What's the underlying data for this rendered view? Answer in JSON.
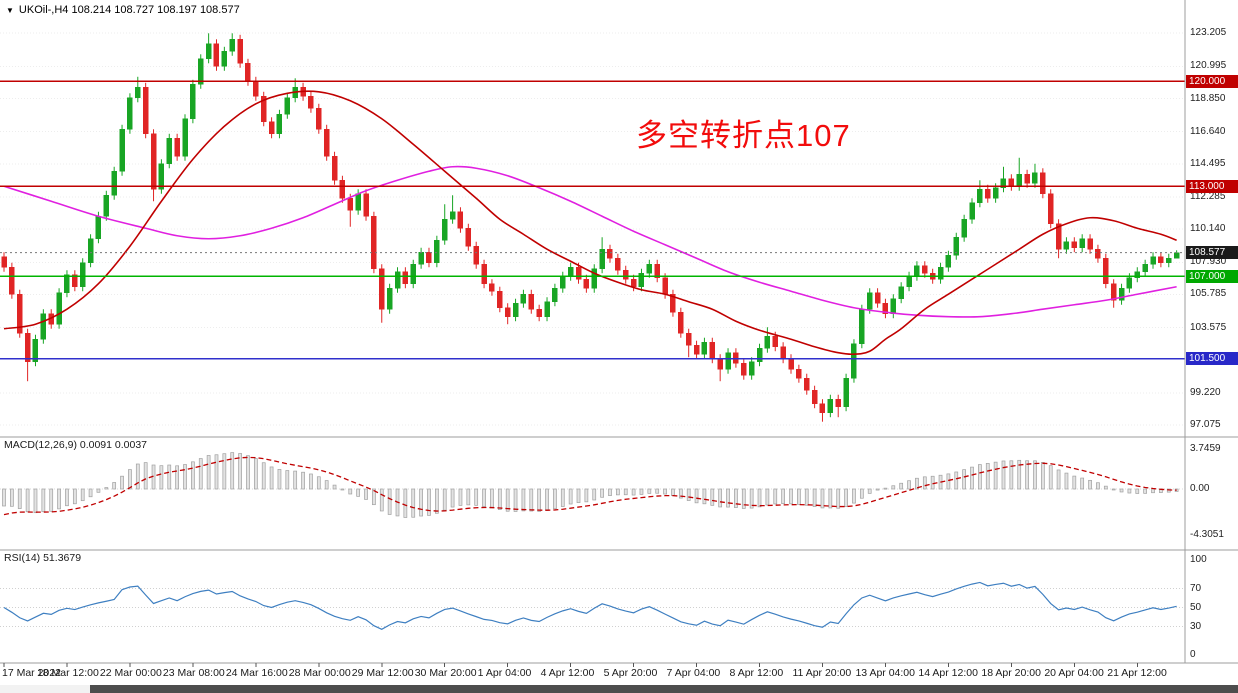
{
  "header": {
    "marker": "▼",
    "text": "UKOil-,H4  108.214 108.727 108.197 108.577"
  },
  "annotation": {
    "text": "多空转折点107",
    "color": "#f20c0c"
  },
  "indicators": {
    "macd": {
      "label": "MACD(12,26,9) 0.0091 0.0037",
      "axis_labels": [
        {
          "text": "3.7459",
          "value": 3.7459
        },
        {
          "text": "0.00",
          "value": 0
        },
        {
          "text": "-4.3051",
          "value": -4.3051
        }
      ]
    },
    "rsi": {
      "label": "RSI(14) 51.3679",
      "axis_labels": [
        {
          "text": "100",
          "value": 100
        },
        {
          "text": "70",
          "value": 70
        },
        {
          "text": "50",
          "value": 50
        },
        {
          "text": "30",
          "value": 30
        },
        {
          "text": "0",
          "value": 0
        }
      ],
      "levels": [
        70,
        50,
        30
      ]
    }
  },
  "price_axis": {
    "labels": [
      {
        "text": "123.205",
        "price": 123.205
      },
      {
        "text": "120.995",
        "price": 120.995
      },
      {
        "text": "118.850",
        "price": 118.85
      },
      {
        "text": "116.640",
        "price": 116.64
      },
      {
        "text": "114.495",
        "price": 114.495
      },
      {
        "text": "112.285",
        "price": 112.285
      },
      {
        "text": "110.140",
        "price": 110.14
      },
      {
        "text": "107.930",
        "price": 107.93
      },
      {
        "text": "105.785",
        "price": 105.785
      },
      {
        "text": "103.575",
        "price": 103.575
      },
      {
        "text": "99.220",
        "price": 99.22
      },
      {
        "text": "97.075",
        "price": 97.075
      }
    ],
    "tags": [
      {
        "text": "120.000",
        "price": 120.0,
        "bg": "#c00000"
      },
      {
        "text": "113.000",
        "price": 113.0,
        "bg": "#c00000"
      },
      {
        "text": "108.577",
        "price": 108.577,
        "bg": "#1a1a1a"
      },
      {
        "text": "107.000",
        "price": 107.0,
        "bg": "#00a800"
      },
      {
        "text": "101.500",
        "price": 101.5,
        "bg": "#2828c8"
      }
    ]
  },
  "time_axis": {
    "labels": [
      {
        "bar": 0,
        "text": "17 Mar 2022"
      },
      {
        "bar": 8,
        "text": "18 Mar 12:00"
      },
      {
        "bar": 16,
        "text": "22 Mar 00:00"
      },
      {
        "bar": 24,
        "text": "23 Mar 08:00"
      },
      {
        "bar": 32,
        "text": "24 Mar 16:00"
      },
      {
        "bar": 40,
        "text": "28 Mar 00:00"
      },
      {
        "bar": 48,
        "text": "29 Mar 12:00"
      },
      {
        "bar": 56,
        "text": "30 Mar 20:00"
      },
      {
        "bar": 64,
        "text": "1 Apr 04:00"
      },
      {
        "bar": 72,
        "text": "4 Apr 12:00"
      },
      {
        "bar": 80,
        "text": "5 Apr 20:00"
      },
      {
        "bar": 88,
        "text": "7 Apr 04:00"
      },
      {
        "bar": 96,
        "text": "8 Apr 12:00"
      },
      {
        "bar": 104,
        "text": "11 Apr 20:00"
      },
      {
        "bar": 112,
        "text": "13 Apr 04:00"
      },
      {
        "bar": 120,
        "text": "14 Apr 12:00"
      },
      {
        "bar": 128,
        "text": "18 Apr 20:00"
      },
      {
        "bar": 136,
        "text": "20 Apr 04:00"
      },
      {
        "bar": 144,
        "text": "21 Apr 12:00"
      }
    ]
  },
  "colors": {
    "up": "#18a524",
    "down": "#e02525",
    "ma_fast": "#c00000",
    "ma_slow": "#e020e0",
    "macd_hist_fill": "#e2e2e2",
    "macd_hist_stroke": "#a0a0a0",
    "macd_signal": "#c00000",
    "rsi_line": "#3e7fc1",
    "grid": "#ededed",
    "separator": "#9c9c9c",
    "current_price_line": "#777777"
  },
  "chart_data": {
    "type": "candlestick",
    "symbol": "UKOil-",
    "timeframe": "H4",
    "ohlc_current": {
      "open": 108.214,
      "high": 108.727,
      "low": 108.197,
      "close": 108.577
    },
    "y_range_main": [
      96.28,
      125.42
    ],
    "current_price_line": 108.577,
    "hlines": [
      {
        "price": 120.0,
        "color": "#c00000"
      },
      {
        "price": 113.0,
        "color": "#c00000"
      },
      {
        "price": 107.0,
        "color": "#00b400"
      },
      {
        "price": 101.5,
        "color": "#3030cc"
      }
    ],
    "candles": [
      [
        108.3,
        108.6,
        107.3,
        107.6
      ],
      [
        107.6,
        107.9,
        105.5,
        105.8
      ],
      [
        105.8,
        106.1,
        102.9,
        103.2
      ],
      [
        103.2,
        103.5,
        100.0,
        101.3
      ],
      [
        101.3,
        103.1,
        101.0,
        102.8
      ],
      [
        102.8,
        104.8,
        102.5,
        104.5
      ],
      [
        104.5,
        104.8,
        103.5,
        103.8
      ],
      [
        103.8,
        106.2,
        103.5,
        105.9
      ],
      [
        105.9,
        107.4,
        105.6,
        107.1
      ],
      [
        107.1,
        107.4,
        106.0,
        106.3
      ],
      [
        106.3,
        108.2,
        106.0,
        107.9
      ],
      [
        107.9,
        109.8,
        107.6,
        109.5
      ],
      [
        109.5,
        111.3,
        109.2,
        111.0
      ],
      [
        111.0,
        112.7,
        110.7,
        112.4
      ],
      [
        112.4,
        114.3,
        112.1,
        114.0
      ],
      [
        114.0,
        117.1,
        113.7,
        116.8
      ],
      [
        116.8,
        119.2,
        116.5,
        118.9
      ],
      [
        118.9,
        120.3,
        118.6,
        119.6
      ],
      [
        119.6,
        119.9,
        116.2,
        116.5
      ],
      [
        116.5,
        116.8,
        112.0,
        112.8
      ],
      [
        112.8,
        114.8,
        112.5,
        114.5
      ],
      [
        114.5,
        116.5,
        114.2,
        116.2
      ],
      [
        116.2,
        116.5,
        114.7,
        115.0
      ],
      [
        115.0,
        117.8,
        114.7,
        117.5
      ],
      [
        117.5,
        120.1,
        117.2,
        119.8
      ],
      [
        119.8,
        121.8,
        119.5,
        121.5
      ],
      [
        121.5,
        123.2,
        121.2,
        122.5
      ],
      [
        122.5,
        122.8,
        120.7,
        121.0
      ],
      [
        121.0,
        122.3,
        120.7,
        122.0
      ],
      [
        122.0,
        123.2,
        121.7,
        122.8
      ],
      [
        122.8,
        123.1,
        120.9,
        121.2
      ],
      [
        121.2,
        121.5,
        119.7,
        120.0
      ],
      [
        120.0,
        120.3,
        118.7,
        119.0
      ],
      [
        119.0,
        119.3,
        117.0,
        117.3
      ],
      [
        117.3,
        117.6,
        116.2,
        116.5
      ],
      [
        116.5,
        118.1,
        116.2,
        117.8
      ],
      [
        117.8,
        119.2,
        117.5,
        118.9
      ],
      [
        118.9,
        120.2,
        118.6,
        119.6
      ],
      [
        119.6,
        119.9,
        118.7,
        119.0
      ],
      [
        119.0,
        119.3,
        117.9,
        118.2
      ],
      [
        118.2,
        118.5,
        116.5,
        116.8
      ],
      [
        116.8,
        117.1,
        114.7,
        115.0
      ],
      [
        115.0,
        115.3,
        113.1,
        113.4
      ],
      [
        113.4,
        113.7,
        111.9,
        112.2
      ],
      [
        112.2,
        112.5,
        110.3,
        111.4
      ],
      [
        111.4,
        112.8,
        111.1,
        112.5
      ],
      [
        112.5,
        112.8,
        110.7,
        111.0
      ],
      [
        111.0,
        111.3,
        107.2,
        107.5
      ],
      [
        107.5,
        107.8,
        103.9,
        104.8
      ],
      [
        104.8,
        106.5,
        104.5,
        106.2
      ],
      [
        106.2,
        107.6,
        105.9,
        107.3
      ],
      [
        107.3,
        107.6,
        106.2,
        106.5
      ],
      [
        106.5,
        108.1,
        106.2,
        107.8
      ],
      [
        107.8,
        108.9,
        107.5,
        108.6
      ],
      [
        108.6,
        108.9,
        107.6,
        107.9
      ],
      [
        107.9,
        109.7,
        107.6,
        109.4
      ],
      [
        109.4,
        111.8,
        109.1,
        110.8
      ],
      [
        110.8,
        112.4,
        110.5,
        111.3
      ],
      [
        111.3,
        111.6,
        109.9,
        110.2
      ],
      [
        110.2,
        110.5,
        108.7,
        109.0
      ],
      [
        109.0,
        109.3,
        107.5,
        107.8
      ],
      [
        107.8,
        108.1,
        106.2,
        106.5
      ],
      [
        106.5,
        106.8,
        105.7,
        106.0
      ],
      [
        106.0,
        106.3,
        104.6,
        104.9
      ],
      [
        104.9,
        105.2,
        103.8,
        104.3
      ],
      [
        104.3,
        105.5,
        104.0,
        105.2
      ],
      [
        105.2,
        106.1,
        104.9,
        105.8
      ],
      [
        105.8,
        106.1,
        104.5,
        104.8
      ],
      [
        104.8,
        105.1,
        104.0,
        104.3
      ],
      [
        104.3,
        105.6,
        104.0,
        105.3
      ],
      [
        105.3,
        106.5,
        105.0,
        106.2
      ],
      [
        106.2,
        107.3,
        105.9,
        107.0
      ],
      [
        107.0,
        107.9,
        106.7,
        107.6
      ],
      [
        107.6,
        107.9,
        106.5,
        106.8
      ],
      [
        106.8,
        107.1,
        105.9,
        106.2
      ],
      [
        106.2,
        107.8,
        105.9,
        107.5
      ],
      [
        107.5,
        109.6,
        107.2,
        108.8
      ],
      [
        108.8,
        109.1,
        107.9,
        108.2
      ],
      [
        108.2,
        108.5,
        107.1,
        107.4
      ],
      [
        107.4,
        107.7,
        106.5,
        106.8
      ],
      [
        106.8,
        107.1,
        106.0,
        106.3
      ],
      [
        106.3,
        107.5,
        106.0,
        107.2
      ],
      [
        107.2,
        108.1,
        106.9,
        107.8
      ],
      [
        107.8,
        108.1,
        106.6,
        106.9
      ],
      [
        106.9,
        107.2,
        105.5,
        105.8
      ],
      [
        105.8,
        106.1,
        104.3,
        104.6
      ],
      [
        104.6,
        104.9,
        102.9,
        103.2
      ],
      [
        103.2,
        103.5,
        101.6,
        102.4
      ],
      [
        102.4,
        102.7,
        101.5,
        101.8
      ],
      [
        101.8,
        102.9,
        101.5,
        102.6
      ],
      [
        102.6,
        102.9,
        101.2,
        101.5
      ],
      [
        101.5,
        101.8,
        100.0,
        100.8
      ],
      [
        100.8,
        102.2,
        100.5,
        101.9
      ],
      [
        101.9,
        102.2,
        100.9,
        101.2
      ],
      [
        101.2,
        101.5,
        100.1,
        100.4
      ],
      [
        100.4,
        101.6,
        100.1,
        101.3
      ],
      [
        101.3,
        102.5,
        101.0,
        102.2
      ],
      [
        102.2,
        103.6,
        101.9,
        103.0
      ],
      [
        103.0,
        103.3,
        102.0,
        102.3
      ],
      [
        102.3,
        102.6,
        101.2,
        101.5
      ],
      [
        101.5,
        101.8,
        100.5,
        100.8
      ],
      [
        100.8,
        101.1,
        99.9,
        100.2
      ],
      [
        100.2,
        100.5,
        99.1,
        99.4
      ],
      [
        99.4,
        99.7,
        98.2,
        98.5
      ],
      [
        98.5,
        98.8,
        97.3,
        97.9
      ],
      [
        97.9,
        99.1,
        97.6,
        98.8
      ],
      [
        98.8,
        99.1,
        97.6,
        98.3
      ],
      [
        98.3,
        100.5,
        98.0,
        100.2
      ],
      [
        100.2,
        102.8,
        99.9,
        102.5
      ],
      [
        102.5,
        105.1,
        102.2,
        104.8
      ],
      [
        104.8,
        106.2,
        104.5,
        105.9
      ],
      [
        105.9,
        106.2,
        104.9,
        105.2
      ],
      [
        105.2,
        105.5,
        104.2,
        104.5
      ],
      [
        104.5,
        105.8,
        104.2,
        105.5
      ],
      [
        105.5,
        106.6,
        105.2,
        106.3
      ],
      [
        106.3,
        107.3,
        106.0,
        107.0
      ],
      [
        107.0,
        108.0,
        106.7,
        107.7
      ],
      [
        107.7,
        108.0,
        106.9,
        107.2
      ],
      [
        107.2,
        107.5,
        106.5,
        106.8
      ],
      [
        106.8,
        107.9,
        106.5,
        107.6
      ],
      [
        107.6,
        108.7,
        107.3,
        108.4
      ],
      [
        108.4,
        109.9,
        108.1,
        109.6
      ],
      [
        109.6,
        111.1,
        109.3,
        110.8
      ],
      [
        110.8,
        112.2,
        110.5,
        111.9
      ],
      [
        111.9,
        113.4,
        111.6,
        112.8
      ],
      [
        112.8,
        113.1,
        111.9,
        112.2
      ],
      [
        112.2,
        113.2,
        111.9,
        112.9
      ],
      [
        112.9,
        114.3,
        112.6,
        113.5
      ],
      [
        113.5,
        113.8,
        112.7,
        113.0
      ],
      [
        113.0,
        114.9,
        112.7,
        113.8
      ],
      [
        113.8,
        114.1,
        112.9,
        113.2
      ],
      [
        113.2,
        114.5,
        112.9,
        113.9
      ],
      [
        113.9,
        114.2,
        112.2,
        112.5
      ],
      [
        112.5,
        112.8,
        110.2,
        110.5
      ],
      [
        110.5,
        110.8,
        108.2,
        108.8
      ],
      [
        108.8,
        109.6,
        108.5,
        109.3
      ],
      [
        109.3,
        109.6,
        108.6,
        108.9
      ],
      [
        108.9,
        109.8,
        108.6,
        109.5
      ],
      [
        109.5,
        109.8,
        108.5,
        108.8
      ],
      [
        108.8,
        109.1,
        107.9,
        108.2
      ],
      [
        108.2,
        108.5,
        106.2,
        106.5
      ],
      [
        106.5,
        106.8,
        104.9,
        105.4
      ],
      [
        105.4,
        106.5,
        105.1,
        106.2
      ],
      [
        106.2,
        107.2,
        105.9,
        106.9
      ],
      [
        106.9,
        107.6,
        106.6,
        107.3
      ],
      [
        107.3,
        108.1,
        107.0,
        107.8
      ],
      [
        107.8,
        108.6,
        107.5,
        108.3
      ],
      [
        108.3,
        108.6,
        107.6,
        107.9
      ],
      [
        107.9,
        108.5,
        107.6,
        108.21
      ],
      [
        108.21,
        108.73,
        108.2,
        108.58
      ]
    ],
    "ma_fast_red": [
      [
        0,
        103.5
      ],
      [
        4,
        103.8
      ],
      [
        8,
        104.8
      ],
      [
        12,
        106.5
      ],
      [
        16,
        109.0
      ],
      [
        20,
        112.0
      ],
      [
        24,
        114.8
      ],
      [
        28,
        117.0
      ],
      [
        32,
        118.5
      ],
      [
        36,
        119.2
      ],
      [
        40,
        119.3
      ],
      [
        44,
        118.7
      ],
      [
        48,
        117.5
      ],
      [
        52,
        115.8
      ],
      [
        56,
        114.0
      ],
      [
        60,
        112.2
      ],
      [
        63,
        110.8
      ],
      [
        66,
        109.8
      ],
      [
        69,
        108.8
      ],
      [
        72,
        108.0
      ],
      [
        75,
        107.2
      ],
      [
        78,
        106.6
      ],
      [
        81,
        106.1
      ],
      [
        84,
        105.8
      ],
      [
        87,
        105.3
      ],
      [
        90,
        104.8
      ],
      [
        93,
        104.0
      ],
      [
        96,
        103.4
      ],
      [
        100,
        102.8
      ],
      [
        103,
        102.3
      ],
      [
        106,
        101.9
      ],
      [
        108,
        101.8
      ],
      [
        110,
        102.0
      ],
      [
        112,
        102.8
      ],
      [
        114,
        103.5
      ],
      [
        117,
        104.8
      ],
      [
        120,
        105.8
      ],
      [
        123,
        106.8
      ],
      [
        126,
        107.8
      ],
      [
        129,
        108.8
      ],
      [
        132,
        109.8
      ],
      [
        135,
        110.5
      ],
      [
        138,
        110.9
      ],
      [
        141,
        110.7
      ],
      [
        144,
        110.2
      ],
      [
        147,
        109.8
      ],
      [
        149,
        109.4
      ]
    ],
    "ma_slow_magenta": [
      [
        0,
        113.0
      ],
      [
        6,
        112.0
      ],
      [
        12,
        111.0
      ],
      [
        18,
        110.2
      ],
      [
        22,
        109.7
      ],
      [
        26,
        109.5
      ],
      [
        30,
        109.7
      ],
      [
        34,
        110.2
      ],
      [
        38,
        110.9
      ],
      [
        42,
        111.8
      ],
      [
        46,
        112.7
      ],
      [
        50,
        113.4
      ],
      [
        54,
        114.0
      ],
      [
        57,
        114.3
      ],
      [
        60,
        114.2
      ],
      [
        64,
        113.7
      ],
      [
        68,
        112.9
      ],
      [
        72,
        112.0
      ],
      [
        76,
        111.0
      ],
      [
        80,
        110.0
      ],
      [
        84,
        109.1
      ],
      [
        88,
        108.2
      ],
      [
        92,
        107.3
      ],
      [
        96,
        106.6
      ],
      [
        100,
        106.0
      ],
      [
        104,
        105.4
      ],
      [
        108,
        104.9
      ],
      [
        112,
        104.6
      ],
      [
        116,
        104.4
      ],
      [
        120,
        104.3
      ],
      [
        124,
        104.3
      ],
      [
        128,
        104.5
      ],
      [
        132,
        104.8
      ],
      [
        136,
        105.1
      ],
      [
        140,
        105.4
      ],
      [
        144,
        105.8
      ],
      [
        149,
        106.3
      ]
    ],
    "macd": {
      "params": [
        12,
        26,
        9
      ],
      "current_main": 0.0091,
      "current_signal": 0.0037,
      "axis_max": 3.7459,
      "axis_min": -4.3051
    },
    "rsi": {
      "period": 14,
      "current": 51.3679,
      "levels": [
        70,
        50,
        30
      ]
    }
  }
}
